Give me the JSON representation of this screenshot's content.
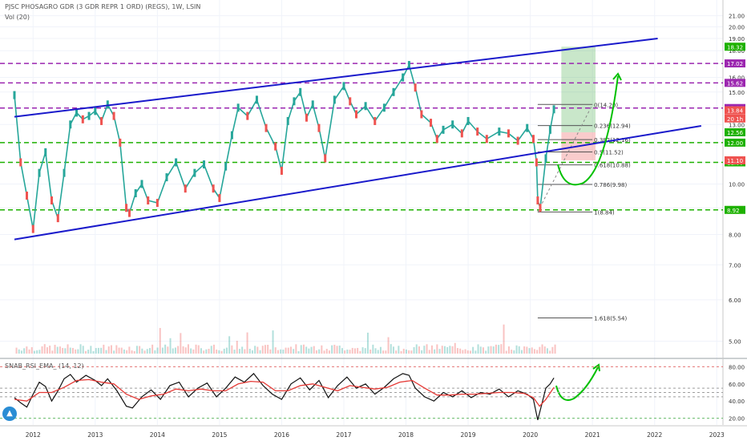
{
  "header": {
    "symbol": "PJSC PHOSAGRO GDR (3 GDR REPR 1 ORD) (REGS), 1W, LSIN",
    "volume": "Vol (20)",
    "indicator": "SNAB_RSI_EMA_ (14, 12)"
  },
  "colors": {
    "up": "#26a69a",
    "down": "#ef5350",
    "channel": "#1a1acb",
    "level_purple": "#9c27b0",
    "level_green": "#1eb100",
    "rsi": "#111111",
    "rsi_ema": "#e53935",
    "fib": "#555555",
    "target_zone": "#4caf50",
    "stop_zone": "#f08080",
    "arrow": "#00c000"
  },
  "chart_data": [
    {
      "type": "line",
      "title": "",
      "x_axis": {
        "ticks": [
          "2012",
          "2013",
          "2014",
          "2015",
          "2016",
          "2017",
          "2018",
          "2019",
          "2020",
          "2021",
          "2022",
          "2023"
        ]
      },
      "y_axis": {
        "scale": "log",
        "range": [
          4.8,
          21.5
        ],
        "ticks": [
          "21.00",
          "20.00",
          "19.00",
          "18.00",
          "17.00",
          "16.00",
          "15.00",
          "14.00",
          "13.00",
          "12.00",
          "11.00",
          "10.00",
          "9.00",
          "8.00",
          "7.00",
          "6.00",
          "5.00"
        ]
      },
      "series": [
        {
          "x": [
            2011.7,
            2011.8,
            2011.9,
            2012.0,
            2012.1,
            2012.2,
            2012.3,
            2012.4,
            2012.5,
            2012.6,
            2012.7,
            2012.8,
            2012.9,
            2013.0,
            2013.1,
            2013.2,
            2013.3,
            2013.4,
            2013.5,
            2013.55,
            2013.65,
            2013.75,
            2013.85,
            2014.0,
            2014.15,
            2014.3,
            2014.45,
            2014.6,
            2014.75,
            2014.9,
            2015.0,
            2015.1,
            2015.2,
            2015.3,
            2015.45,
            2015.6,
            2015.75,
            2015.9,
            2016.0,
            2016.1,
            2016.2,
            2016.3,
            2016.4,
            2016.5,
            2016.6,
            2016.7,
            2016.85,
            2017.0,
            2017.1,
            2017.2,
            2017.35,
            2017.5,
            2017.65,
            2017.8,
            2017.95,
            2018.05,
            2018.15,
            2018.25,
            2018.4,
            2018.5,
            2018.6,
            2018.75,
            2018.9,
            2019.0,
            2019.15,
            2019.3,
            2019.5,
            2019.65,
            2019.8,
            2019.95,
            2020.05,
            2020.1,
            2020.12,
            2020.16,
            2020.25,
            2020.32,
            2020.38
          ],
          "y": [
            14.8,
            11.0,
            9.5,
            8.2,
            10.5,
            11.5,
            9.3,
            8.6,
            10.5,
            13.0,
            13.7,
            13.3,
            13.5,
            13.8,
            13.2,
            14.2,
            13.5,
            12.0,
            9.0,
            8.8,
            9.6,
            10.0,
            9.3,
            9.2,
            10.3,
            11.0,
            9.8,
            10.5,
            10.9,
            9.8,
            9.4,
            10.8,
            12.4,
            14.0,
            13.5,
            14.5,
            12.8,
            11.8,
            10.6,
            13.2,
            14.4,
            15.0,
            13.4,
            14.2,
            12.8,
            11.2,
            14.5,
            15.4,
            14.4,
            13.6,
            14.1,
            13.2,
            14.0,
            15.0,
            16.0,
            16.9,
            15.3,
            13.6,
            13.1,
            12.2,
            12.7,
            13.0,
            12.5,
            13.2,
            12.6,
            12.2,
            12.6,
            12.5,
            12.1,
            12.8,
            12.2,
            11.0,
            9.3,
            9.0,
            11.2,
            12.7,
            13.9
          ]
        }
      ],
      "levels": [
        {
          "label": "17.02",
          "value": 17.02,
          "style": "purple"
        },
        {
          "label": "15.62",
          "value": 15.62,
          "style": "purple"
        },
        {
          "label": "13.98",
          "value": 13.98,
          "style": "purple"
        },
        {
          "label": "12.00",
          "value": 12.0,
          "style": "green"
        },
        {
          "label": "11.00",
          "value": 11.0,
          "style": "green"
        },
        {
          "label": "8.92",
          "value": 8.92,
          "style": "green"
        }
      ],
      "price_labels": [
        {
          "label": "18.32",
          "value": 18.32,
          "color": "#1eb100"
        },
        {
          "label": "13.84",
          "value": 13.84,
          "color": "#ef5350"
        },
        {
          "label": "20 1h",
          "value": 13.35,
          "color": "#ef5350"
        },
        {
          "label": "12.56",
          "value": 12.56,
          "color": "#1eb100"
        },
        {
          "label": "11.10",
          "value": 11.1,
          "color": "#ef5350"
        }
      ],
      "channel": [
        {
          "role": "upper",
          "x1": 2011.7,
          "y1": 13.45,
          "x2": 2022.05,
          "y2": 19.0
        },
        {
          "role": "lower",
          "x1": 2011.7,
          "y1": 7.83,
          "x2": 2022.75,
          "y2": 12.92
        }
      ],
      "fibonacci": [
        {
          "label": "0(14.20)",
          "value": 14.2
        },
        {
          "label": "0.236(12.94)",
          "value": 12.94
        },
        {
          "label": "0.382(12.16)",
          "value": 12.16
        },
        {
          "label": "0.5(11.52)",
          "value": 11.52
        },
        {
          "label": "0.618(10.88)",
          "value": 10.88
        },
        {
          "label": "0.786(9.98)",
          "value": 9.98
        },
        {
          "label": "1(8.84)",
          "value": 8.84
        },
        {
          "label": "1.618(5.54)",
          "value": 5.54
        }
      ],
      "position": {
        "x_start": 2020.5,
        "x_end": 2021.05,
        "entry": 12.56,
        "target": 18.32,
        "stop": 11.1
      }
    },
    {
      "type": "line",
      "title": "",
      "y_axis": {
        "range": [
          15,
          85
        ],
        "ticks": [
          "80.00",
          "60.00",
          "40.00",
          "20.00"
        ]
      },
      "levels": [
        80,
        50,
        55,
        45,
        20
      ],
      "series": [
        {
          "role": "rsi",
          "x": [
            2011.7,
            2011.8,
            2011.9,
            2012.0,
            2012.1,
            2012.2,
            2012.3,
            2012.4,
            2012.5,
            2012.6,
            2012.7,
            2012.85,
            2013.0,
            2013.1,
            2013.2,
            2013.35,
            2013.5,
            2013.6,
            2013.75,
            2013.9,
            2014.05,
            2014.2,
            2014.35,
            2014.5,
            2014.65,
            2014.8,
            2014.95,
            2015.1,
            2015.25,
            2015.4,
            2015.55,
            2015.7,
            2015.85,
            2016.0,
            2016.15,
            2016.3,
            2016.45,
            2016.6,
            2016.75,
            2016.9,
            2017.05,
            2017.2,
            2017.35,
            2017.5,
            2017.65,
            2017.8,
            2017.95,
            2018.05,
            2018.15,
            2018.3,
            2018.45,
            2018.6,
            2018.75,
            2018.9,
            2019.05,
            2019.2,
            2019.35,
            2019.5,
            2019.65,
            2019.8,
            2019.95,
            2020.05,
            2020.12,
            2020.18,
            2020.25,
            2020.32,
            2020.38
          ],
          "y": [
            44,
            38,
            33,
            48,
            62,
            57,
            40,
            52,
            66,
            71,
            62,
            70,
            64,
            58,
            66,
            52,
            34,
            32,
            45,
            53,
            42,
            58,
            62,
            45,
            55,
            61,
            45,
            55,
            68,
            62,
            72,
            58,
            48,
            42,
            60,
            67,
            53,
            64,
            44,
            58,
            68,
            55,
            60,
            48,
            56,
            66,
            72,
            70,
            55,
            45,
            40,
            50,
            45,
            52,
            44,
            50,
            48,
            54,
            45,
            52,
            48,
            42,
            18,
            35,
            55,
            60,
            67
          ]
        },
        {
          "role": "ema",
          "x": [
            2011.7,
            2011.9,
            2012.1,
            2012.3,
            2012.5,
            2012.7,
            2012.9,
            2013.1,
            2013.3,
            2013.5,
            2013.7,
            2013.9,
            2014.1,
            2014.3,
            2014.5,
            2014.7,
            2014.9,
            2015.1,
            2015.3,
            2015.5,
            2015.7,
            2015.9,
            2016.1,
            2016.3,
            2016.5,
            2016.7,
            2016.9,
            2017.1,
            2017.3,
            2017.5,
            2017.7,
            2017.9,
            2018.1,
            2018.3,
            2018.5,
            2018.7,
            2018.9,
            2019.1,
            2019.3,
            2019.5,
            2019.7,
            2019.9,
            2020.05,
            2020.15,
            2020.25,
            2020.38
          ],
          "y": [
            42,
            40,
            50,
            50,
            56,
            64,
            65,
            62,
            60,
            48,
            42,
            46,
            48,
            54,
            52,
            54,
            52,
            52,
            60,
            63,
            62,
            52,
            52,
            58,
            60,
            56,
            52,
            58,
            56,
            54,
            56,
            62,
            64,
            55,
            47,
            47,
            48,
            48,
            49,
            50,
            50,
            49,
            44,
            34,
            42,
            56
          ]
        }
      ]
    }
  ],
  "x_axis_labels": [
    "2012",
    "2013",
    "2014",
    "2015",
    "2016",
    "2017",
    "2018",
    "2019",
    "2020",
    "2021",
    "2022",
    "2023"
  ],
  "price_scale_labels": [
    "21.00",
    "20.00",
    "19.00",
    "18.00",
    "17.00",
    "16.00",
    "15.00",
    "14.00",
    "13.00",
    "12.00",
    "11.00",
    "10.00",
    "9.00",
    "8.00",
    "7.00",
    "6.00",
    "5.00"
  ],
  "rsi_scale_labels": [
    "80.00",
    "60.00",
    "40.00",
    "20.00"
  ]
}
